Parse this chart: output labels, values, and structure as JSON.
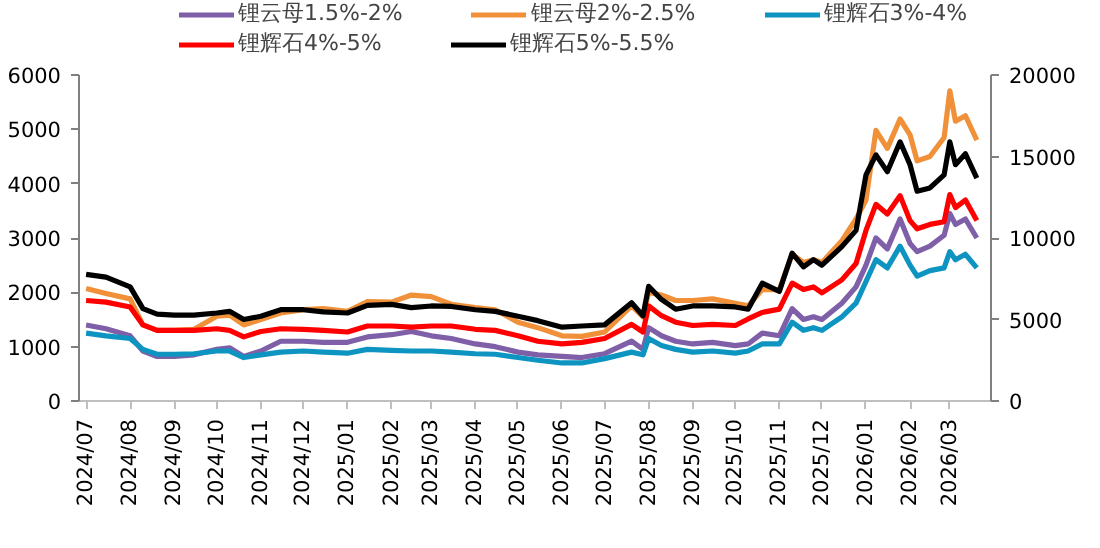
{
  "chart_data": {
    "type": "line",
    "x": [
      "2024-07-01",
      "2024-07-15",
      "2024-08-01",
      "2024-08-10",
      "2024-08-20",
      "2024-09-01",
      "2024-09-15",
      "2024-10-01",
      "2024-10-10",
      "2024-10-20",
      "2024-11-01",
      "2024-11-15",
      "2024-12-01",
      "2024-12-15",
      "2025-01-01",
      "2025-01-15",
      "2025-02-01",
      "2025-02-15",
      "2025-03-01",
      "2025-03-15",
      "2025-04-01",
      "2025-04-15",
      "2025-05-01",
      "2025-05-15",
      "2025-06-01",
      "2025-06-15",
      "2025-07-01",
      "2025-07-20",
      "2025-07-28",
      "2025-08-01",
      "2025-08-10",
      "2025-08-20",
      "2025-09-01",
      "2025-09-15",
      "2025-10-01",
      "2025-10-10",
      "2025-10-20",
      "2025-11-01",
      "2025-11-10",
      "2025-11-18",
      "2025-11-25",
      "2025-12-01",
      "2025-12-15",
      "2025-12-25",
      "2026-01-01",
      "2026-01-08",
      "2026-01-16",
      "2026-01-25",
      "2026-02-01",
      "2026-02-06",
      "2026-02-15",
      "2026-02-25",
      "2026-03-01",
      "2026-03-05",
      "2026-03-12",
      "2026-03-20"
    ],
    "series": [
      {
        "name": "锂云母1.5%-2%",
        "color": "#7f5fa8",
        "values": [
          1400,
          1330,
          1200,
          920,
          820,
          820,
          850,
          950,
          980,
          820,
          920,
          1100,
          1100,
          1080,
          1080,
          1180,
          1220,
          1280,
          1200,
          1150,
          1050,
          1000,
          900,
          850,
          820,
          800,
          870,
          1100,
          950,
          1350,
          1200,
          1100,
          1050,
          1080,
          1020,
          1050,
          1250,
          1200,
          1700,
          1500,
          1550,
          1500,
          1800,
          2100,
          2500,
          3000,
          2800,
          3350,
          2900,
          2750,
          2850,
          3050,
          3450,
          3250,
          3350,
          3000
        ]
      },
      {
        "name": "锂云母2%-2.5%",
        "color": "#f0913a",
        "values": [
          2070,
          1980,
          1880,
          1400,
          1300,
          1300,
          1320,
          1560,
          1580,
          1400,
          1500,
          1620,
          1680,
          1700,
          1650,
          1830,
          1820,
          1950,
          1920,
          1780,
          1720,
          1680,
          1450,
          1350,
          1200,
          1190,
          1270,
          1750,
          1550,
          2000,
          1950,
          1850,
          1850,
          1880,
          1800,
          1750,
          2050,
          2050,
          2700,
          2550,
          2600,
          2550,
          2950,
          3350,
          3700,
          4980,
          4650,
          5190,
          4900,
          4420,
          4500,
          4850,
          5710,
          5150,
          5250,
          4800
        ]
      },
      {
        "name": "锂辉石3%-4%",
        "color": "#0e94c0",
        "values": [
          1250,
          1200,
          1150,
          950,
          860,
          860,
          870,
          920,
          920,
          800,
          850,
          900,
          920,
          900,
          880,
          950,
          930,
          920,
          920,
          900,
          870,
          860,
          800,
          750,
          700,
          700,
          780,
          900,
          850,
          1150,
          1020,
          950,
          900,
          920,
          880,
          920,
          1050,
          1050,
          1450,
          1300,
          1350,
          1300,
          1550,
          1800,
          2200,
          2600,
          2450,
          2850,
          2500,
          2300,
          2400,
          2450,
          2750,
          2600,
          2700,
          2450
        ]
      },
      {
        "name": "锂辉石4%-5%",
        "color": "#ff0000",
        "values": [
          1850,
          1820,
          1730,
          1400,
          1300,
          1300,
          1300,
          1330,
          1300,
          1180,
          1280,
          1330,
          1320,
          1300,
          1270,
          1380,
          1380,
          1360,
          1380,
          1380,
          1320,
          1300,
          1200,
          1100,
          1050,
          1080,
          1150,
          1410,
          1270,
          1750,
          1570,
          1450,
          1390,
          1410,
          1390,
          1510,
          1630,
          1690,
          2170,
          2050,
          2100,
          1990,
          2230,
          2530,
          3140,
          3620,
          3440,
          3780,
          3320,
          3170,
          3250,
          3300,
          3800,
          3560,
          3700,
          3320
        ]
      },
      {
        "name": "锂辉石5%-5.5%",
        "color": "#000000",
        "axis": "y2",
        "values": [
          7770,
          7600,
          7000,
          5670,
          5330,
          5270,
          5270,
          5400,
          5500,
          5000,
          5200,
          5600,
          5600,
          5470,
          5400,
          5870,
          5930,
          5730,
          5830,
          5800,
          5600,
          5500,
          5200,
          4930,
          4530,
          4600,
          4670,
          6030,
          5230,
          7030,
          6230,
          5630,
          5830,
          5830,
          5770,
          5630,
          7230,
          6730,
          9070,
          8230,
          8670,
          8330,
          9470,
          10470,
          13870,
          15100,
          14070,
          15900,
          14500,
          12870,
          13070,
          13870,
          15900,
          14500,
          15170,
          13670
        ]
      }
    ],
    "xlim": [
      "2024-06-26",
      "2026-03-30"
    ],
    "xticks": [
      {
        "value": "2024-07-01",
        "label": "2024/07"
      },
      {
        "value": "2024-08-01",
        "label": "2024/08"
      },
      {
        "value": "2024-09-01",
        "label": "2024/09"
      },
      {
        "value": "2024-10-01",
        "label": "2024/10"
      },
      {
        "value": "2024-11-01",
        "label": "2024/11"
      },
      {
        "value": "2024-12-01",
        "label": "2024/12"
      },
      {
        "value": "2025-01-01",
        "label": "2025/01"
      },
      {
        "value": "2025-02-01",
        "label": "2025/02"
      },
      {
        "value": "2025-03-01",
        "label": "2025/03"
      },
      {
        "value": "2025-04-01",
        "label": "2025/04"
      },
      {
        "value": "2025-05-01",
        "label": "2025/05"
      },
      {
        "value": "2025-06-01",
        "label": "2025/06"
      },
      {
        "value": "2025-07-01",
        "label": "2025/07"
      },
      {
        "value": "2025-08-01",
        "label": "2025/08"
      },
      {
        "value": "2025-09-01",
        "label": "2025/09"
      },
      {
        "value": "2025-10-01",
        "label": "2025/10"
      },
      {
        "value": "2025-11-01",
        "label": "2025/11"
      },
      {
        "value": "2025-12-01",
        "label": "2025/12"
      },
      {
        "value": "2026-01-01",
        "label": "2026/01"
      },
      {
        "value": "2026-02-01",
        "label": "2026/02"
      },
      {
        "value": "2026-03-01",
        "label": "2026/03"
      }
    ],
    "ylim": [
      0,
      6000
    ],
    "yticks": [
      0,
      1000,
      2000,
      3000,
      4000,
      5000,
      6000
    ],
    "y2lim": [
      0,
      20000
    ],
    "y2ticks": [
      0,
      5000,
      10000,
      15000,
      20000
    ],
    "grid": false,
    "legend": "top",
    "marker": "none",
    "line_style": "solid"
  }
}
